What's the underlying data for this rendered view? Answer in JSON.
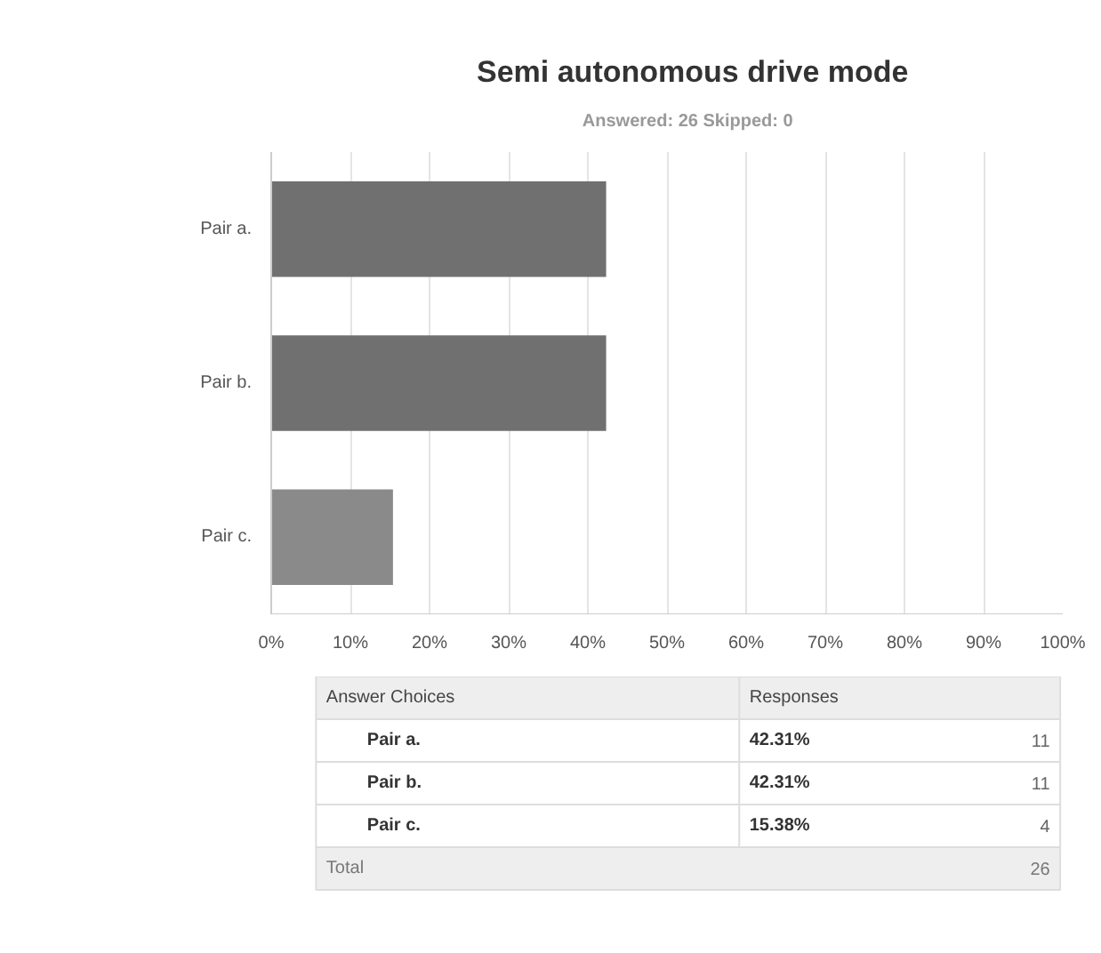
{
  "chart_data": {
    "type": "bar",
    "orientation": "horizontal",
    "title": "Semi autonomous drive mode",
    "subtitle": "Answered: 26   Skipped: 0",
    "categories": [
      "Pair a.",
      "Pair b.",
      "Pair c."
    ],
    "values": [
      42.31,
      42.31,
      15.38
    ],
    "colors": [
      "#707070",
      "#707070",
      "#8a8a8a"
    ],
    "xlim": [
      0,
      100
    ],
    "xticks": [
      {
        "value": 0,
        "label": "0%"
      },
      {
        "value": 10,
        "label": "10%"
      },
      {
        "value": 20,
        "label": "20%"
      },
      {
        "value": 30,
        "label": "30%"
      },
      {
        "value": 40,
        "label": "40%"
      },
      {
        "value": 50,
        "label": "50%"
      },
      {
        "value": 60,
        "label": "60%"
      },
      {
        "value": 70,
        "label": "70%"
      },
      {
        "value": 80,
        "label": "80%"
      },
      {
        "value": 90,
        "label": "90%"
      },
      {
        "value": 100,
        "label": "100%"
      }
    ],
    "grid": "x",
    "annotations": [
      "Answer Choices",
      "Responses",
      "42.31%",
      "11",
      "42.31%",
      "11",
      "15.38%",
      "4",
      "Total",
      "26"
    ]
  }
}
